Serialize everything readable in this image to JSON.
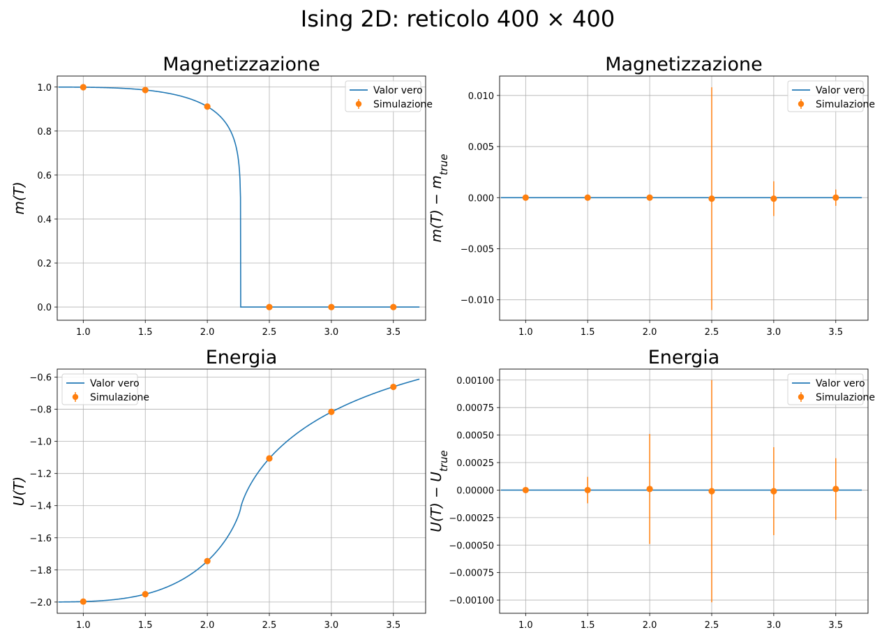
{
  "figure": {
    "title": "Ising 2D: reticolo 400 × 400",
    "colors": {
      "true_line": "#1f77b4",
      "simulation": "#ff7f0e",
      "grid": "#b0b0b0"
    }
  },
  "chart_data": [
    {
      "id": "mag",
      "type": "line",
      "title": "Magnetizzazione",
      "ylabel": "m(T)",
      "ylabel_parts": [
        "m(T)"
      ],
      "xlim": [
        0.79,
        3.76
      ],
      "ylim": [
        -0.06,
        1.05
      ],
      "xticks": [
        1.0,
        1.5,
        2.0,
        2.5,
        3.0,
        3.5
      ],
      "xtick_labels": [
        "1.0",
        "1.5",
        "2.0",
        "2.5",
        "3.0",
        "3.5"
      ],
      "yticks": [
        0.0,
        0.2,
        0.4,
        0.6,
        0.8,
        1.0
      ],
      "ytick_labels": [
        "0.0",
        "0.2",
        "0.4",
        "0.6",
        "0.8",
        "1.0"
      ],
      "grid": true,
      "legend": {
        "position": "upper-right",
        "entries": [
          "Valor vero",
          "Simulazione"
        ]
      },
      "true_curve": {
        "name": "Valor vero",
        "function": "onsager_magnetization",
        "x_range": [
          0.8,
          3.71
        ]
      },
      "series": [
        {
          "name": "Simulazione",
          "x": [
            1.0,
            1.5,
            2.0,
            2.5,
            3.0,
            3.5
          ],
          "y": [
            0.9993,
            0.9865,
            0.9113,
            0.0,
            0.0,
            0.0
          ],
          "yerr": [
            0,
            0,
            0,
            0,
            0,
            0
          ]
        }
      ]
    },
    {
      "id": "mag_diff",
      "type": "line",
      "title": "Magnetizzazione",
      "ylabel": "m(T) − m_true",
      "ylabel_parts": [
        "m(T) − m",
        "true"
      ],
      "xlim": [
        0.79,
        3.76
      ],
      "ylim": [
        -0.012,
        0.0119
      ],
      "xticks": [
        1.0,
        1.5,
        2.0,
        2.5,
        3.0,
        3.5
      ],
      "xtick_labels": [
        "1.0",
        "1.5",
        "2.0",
        "2.5",
        "3.0",
        "3.5"
      ],
      "yticks": [
        -0.01,
        -0.005,
        0.0,
        0.005,
        0.01
      ],
      "ytick_labels": [
        "−0.010",
        "−0.005",
        "0.000",
        "0.005",
        "0.010"
      ],
      "grid": true,
      "legend": {
        "position": "upper-right",
        "entries": [
          "Valor vero",
          "Simulazione"
        ]
      },
      "true_curve": {
        "name": "Valor vero",
        "function": "zero",
        "x_range": [
          0.8,
          3.71
        ]
      },
      "series": [
        {
          "name": "Simulazione",
          "x": [
            1.0,
            1.5,
            2.0,
            2.5,
            3.0,
            3.5
          ],
          "y": [
            0.0,
            0.0,
            0.0,
            -0.0001,
            -0.0001,
            0.0
          ],
          "yerr": [
            5e-05,
            8e-05,
            0.0002,
            0.0109,
            0.0017,
            0.0008
          ]
        }
      ]
    },
    {
      "id": "energy",
      "type": "line",
      "title": "Energia",
      "ylabel": "U(T)",
      "ylabel_parts": [
        "U(T)"
      ],
      "xlim": [
        0.79,
        3.76
      ],
      "ylim": [
        -2.07,
        -0.55
      ],
      "xticks": [
        1.0,
        1.5,
        2.0,
        2.5,
        3.0,
        3.5
      ],
      "xtick_labels": [
        "1.0",
        "1.5",
        "2.0",
        "2.5",
        "3.0",
        "3.5"
      ],
      "yticks": [
        -2.0,
        -1.8,
        -1.6,
        -1.4,
        -1.2,
        -1.0,
        -0.8,
        -0.6
      ],
      "ytick_labels": [
        "−2.0",
        "−1.8",
        "−1.6",
        "−1.4",
        "−1.2",
        "−1.0",
        "−0.8",
        "−0.6"
      ],
      "grid": true,
      "legend": {
        "position": "upper-left",
        "entries": [
          "Valor vero",
          "Simulazione"
        ]
      },
      "true_curve": {
        "name": "Valor vero",
        "function": "onsager_energy",
        "x_range": [
          0.8,
          3.71
        ]
      },
      "series": [
        {
          "name": "Simulazione",
          "x": [
            1.0,
            1.5,
            2.0,
            2.5,
            3.0,
            3.5
          ],
          "y": [
            -1.997,
            -1.951,
            -1.745,
            -1.106,
            -0.816,
            -0.661
          ],
          "yerr": [
            0,
            0,
            0,
            0,
            0,
            0
          ]
        }
      ]
    },
    {
      "id": "energy_diff",
      "type": "line",
      "title": "Energia",
      "ylabel": "U(T) − U_true",
      "ylabel_parts": [
        "U(T) − U",
        "true"
      ],
      "xlim": [
        0.79,
        3.76
      ],
      "ylim": [
        -0.00112,
        0.0011
      ],
      "xticks": [
        1.0,
        1.5,
        2.0,
        2.5,
        3.0,
        3.5
      ],
      "xtick_labels": [
        "1.0",
        "1.5",
        "2.0",
        "2.5",
        "3.0",
        "3.5"
      ],
      "yticks": [
        -0.001,
        -0.00075,
        -0.0005,
        -0.00025,
        0.0,
        0.00025,
        0.0005,
        0.00075,
        0.001
      ],
      "ytick_labels": [
        "−0.00100",
        "−0.00075",
        "−0.00050",
        "−0.00025",
        "0.00000",
        "0.00025",
        "0.00050",
        "0.00075",
        "0.00100"
      ],
      "grid": true,
      "legend": {
        "position": "upper-right",
        "entries": [
          "Valor vero",
          "Simulazione"
        ]
      },
      "true_curve": {
        "name": "Valor vero",
        "function": "zero",
        "x_range": [
          0.8,
          3.71
        ]
      },
      "series": [
        {
          "name": "Simulazione",
          "x": [
            1.0,
            1.5,
            2.0,
            2.5,
            3.0,
            3.5
          ],
          "y": [
            0.0,
            0.0,
            1e-05,
            -1e-05,
            -1e-05,
            1e-05
          ],
          "yerr": [
            2e-05,
            0.00012,
            0.0005,
            0.00101,
            0.0004,
            0.00028
          ]
        }
      ]
    }
  ]
}
